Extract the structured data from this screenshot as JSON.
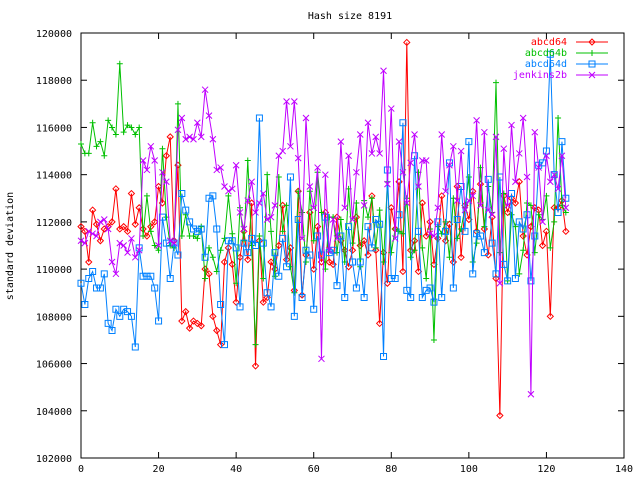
{
  "chart_data": {
    "type": "line",
    "title": "Hash size 8191",
    "xlabel": "",
    "ylabel": "standard deviation",
    "xlim": [
      0,
      140
    ],
    "ylim": [
      102000,
      120000
    ],
    "x_ticks": [
      0,
      20,
      40,
      60,
      80,
      100,
      120,
      140
    ],
    "y_ticks": [
      102000,
      104000,
      106000,
      108000,
      110000,
      112000,
      114000,
      116000,
      118000,
      120000
    ],
    "grid": false,
    "legend_position": "top-right",
    "x": [
      0,
      1,
      2,
      3,
      4,
      5,
      6,
      7,
      8,
      9,
      10,
      11,
      12,
      13,
      14,
      15,
      16,
      17,
      18,
      19,
      20,
      21,
      22,
      23,
      24,
      25,
      26,
      27,
      28,
      29,
      30,
      31,
      32,
      33,
      34,
      35,
      36,
      37,
      38,
      39,
      40,
      41,
      42,
      43,
      44,
      45,
      46,
      47,
      48,
      49,
      50,
      51,
      52,
      53,
      54,
      55,
      56,
      57,
      58,
      59,
      60,
      61,
      62,
      63,
      64,
      65,
      66,
      67,
      68,
      69,
      70,
      71,
      72,
      73,
      74,
      75,
      76,
      77,
      78,
      79,
      80,
      81,
      82,
      83,
      84,
      85,
      86,
      87,
      88,
      89,
      90,
      91,
      92,
      93,
      94,
      95,
      96,
      97,
      98,
      99,
      100,
      101,
      102,
      103,
      104,
      105,
      106,
      107,
      108,
      109,
      110,
      111,
      112,
      113,
      114,
      115,
      116,
      117,
      118,
      119,
      120,
      121,
      122,
      123,
      124,
      125
    ],
    "series": [
      {
        "name": "abcd64",
        "color": "#ff0000",
        "marker": "diamond",
        "values": [
          111800,
          111600,
          110300,
          112500,
          111900,
          111200,
          111700,
          111800,
          112000,
          113400,
          111700,
          111800,
          111600,
          113200,
          111900,
          112600,
          111700,
          111400,
          111800,
          112000,
          113500,
          112800,
          114800,
          115600,
          111200,
          114400,
          107800,
          108200,
          107500,
          107800,
          107700,
          107600,
          110000,
          109800,
          108000,
          107400,
          106800,
          110300,
          110900,
          110200,
          108600,
          110500,
          111600,
          110400,
          112800,
          105900,
          111200,
          108600,
          108800,
          110300,
          110000,
          111000,
          112700,
          110400,
          110900,
          109100,
          113300,
          108900,
          110600,
          112400,
          110000,
          111800,
          110300,
          112400,
          110300,
          110200,
          112200,
          111200,
          110800,
          110100,
          110800,
          112200,
          111000,
          111200,
          110600,
          113100,
          110800,
          107700,
          110700,
          109400,
          112600,
          111700,
          113700,
          109900,
          119600,
          110800,
          111200,
          109900,
          112800,
          111400,
          112000,
          110200,
          111300,
          113100,
          111200,
          111900,
          110300,
          113500,
          110500,
          112700,
          112100,
          113300,
          111600,
          113600,
          111700,
          110600,
          112200,
          109600,
          103800,
          113100,
          112400,
          113000,
          112800,
          113700,
          111400,
          110600,
          111800,
          112600,
          112500,
          111000,
          111600,
          108000,
          112600,
          112600,
          112900,
          111600
        ]
      },
      {
        "name": "abcd64b",
        "color": "#00c000",
        "marker": "plus",
        "values": [
          115300,
          114900,
          114900,
          116200,
          115200,
          115400,
          114800,
          116300,
          116000,
          115700,
          118700,
          115800,
          116100,
          116000,
          115700,
          116000,
          111400,
          113100,
          111600,
          111000,
          110800,
          115100,
          112200,
          111000,
          110900,
          117000,
          111400,
          112300,
          111400,
          111400,
          111300,
          111800,
          109600,
          110900,
          110500,
          109900,
          110800,
          111300,
          113100,
          111500,
          109400,
          112600,
          111200,
          114600,
          111000,
          106800,
          111400,
          109600,
          114000,
          111600,
          109700,
          113900,
          111600,
          112700,
          110100,
          109000,
          113300,
          112400,
          110300,
          113300,
          111200,
          114100,
          112400,
          110000,
          112200,
          112200,
          110700,
          112100,
          110300,
          113400,
          111100,
          112800,
          110100,
          112900,
          112200,
          113000,
          110900,
          112500,
          110300,
          113700,
          110700,
          111700,
          111600,
          111500,
          113000,
          110500,
          110800,
          114100,
          110900,
          109600,
          111700,
          107000,
          111800,
          111500,
          112000,
          110500,
          113000,
          111300,
          111700,
          112600,
          113900,
          110300,
          111100,
          114300,
          111800,
          113500,
          112400,
          117900,
          110700,
          113200,
          109500,
          112300,
          111800,
          109800,
          110800,
          112800,
          112700,
          110700,
          112300,
          112100,
          113100,
          110900,
          112000,
          116400,
          112700,
          112400
        ]
      },
      {
        "name": "abcd64d",
        "color": "#0080ff",
        "marker": "square",
        "values": [
          109400,
          108500,
          109600,
          109900,
          109200,
          109200,
          109800,
          107700,
          107400,
          108300,
          108000,
          108300,
          108200,
          108000,
          106700,
          110900,
          109700,
          109700,
          109700,
          109200,
          107800,
          112200,
          111100,
          109600,
          111100,
          110600,
          113200,
          112500,
          112000,
          111700,
          111600,
          111700,
          110500,
          113000,
          113100,
          111700,
          108500,
          106800,
          111200,
          111200,
          110900,
          108400,
          111100,
          110700,
          111300,
          111000,
          116400,
          111100,
          109000,
          108400,
          110700,
          109700,
          111300,
          110100,
          113900,
          108000,
          112100,
          108800,
          110800,
          110600,
          108300,
          111400,
          110600,
          112200,
          110700,
          110800,
          109300,
          111400,
          108800,
          111800,
          110300,
          109200,
          110300,
          108800,
          111800,
          110900,
          112100,
          111900,
          106300,
          114200,
          109600,
          109600,
          112300,
          116200,
          109100,
          108800,
          114800,
          111600,
          108800,
          109100,
          109200,
          108600,
          112000,
          108800,
          111600,
          114500,
          109200,
          112100,
          113500,
          111600,
          115400,
          109800,
          111500,
          111400,
          110700,
          113800,
          111100,
          109800,
          113900,
          110200,
          109500,
          113200,
          109600,
          112000,
          111700,
          112300,
          109500,
          111400,
          114400,
          114500,
          115000,
          119100,
          114000,
          112400,
          115400,
          113000
        ]
      },
      {
        "name": "jenkins2b",
        "color": "#c000ff",
        "marker": "cross",
        "values": [
          111200,
          111100,
          111600,
          111500,
          111400,
          112000,
          112100,
          111700,
          110300,
          109800,
          111100,
          111000,
          110700,
          111300,
          110500,
          110800,
          114600,
          114200,
          115200,
          114600,
          111000,
          114100,
          113700,
          111200,
          111100,
          115900,
          116400,
          115500,
          115600,
          115500,
          116200,
          115600,
          117600,
          116500,
          115500,
          114200,
          114300,
          113500,
          113300,
          113400,
          114400,
          112400,
          111700,
          112900,
          113700,
          112400,
          112800,
          113200,
          112100,
          112200,
          112700,
          114800,
          115000,
          117100,
          115200,
          117100,
          114700,
          111300,
          116400,
          113500,
          112600,
          114300,
          106200,
          114000,
          110800,
          112100,
          111300,
          115400,
          112600,
          114800,
          112100,
          114100,
          115700,
          112700,
          116200,
          114900,
          115600,
          114900,
          118400,
          113600,
          116800,
          111300,
          115400,
          114100,
          112800,
          114500,
          115700,
          113500,
          114600,
          114600,
          111500,
          111400,
          112600,
          115700,
          113300,
          114400,
          115200,
          112900,
          115000,
          112500,
          112900,
          113100,
          116300,
          112700,
          115800,
          112500,
          112300,
          115600,
          109400,
          115100,
          112700,
          116100,
          113700,
          114900,
          116400,
          113900,
          104700,
          115800,
          114300,
          112000,
          114800,
          113700,
          114000,
          113400,
          114800,
          112600
        ]
      }
    ]
  }
}
